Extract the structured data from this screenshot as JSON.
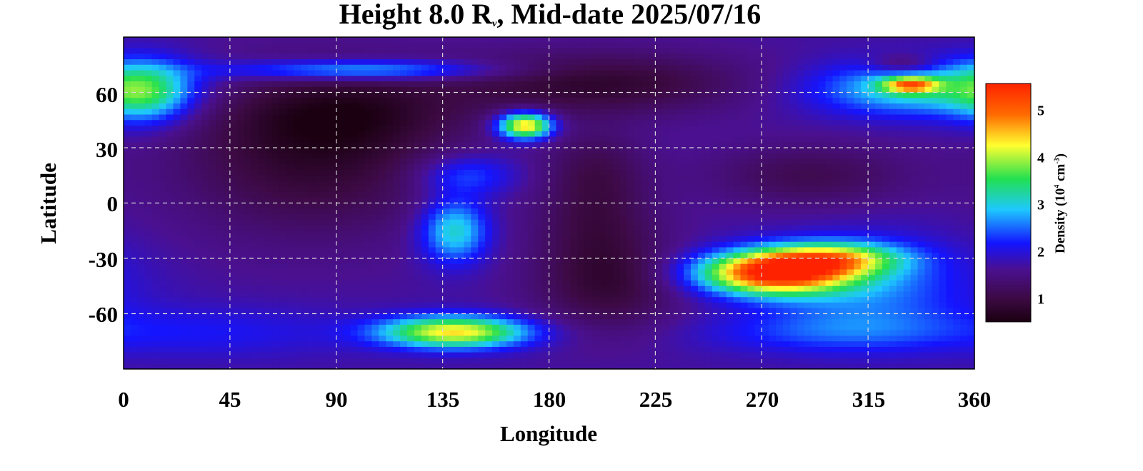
{
  "title": {
    "prefix": "Height 8.0 R",
    "subscript": "v",
    "suffix": ", Mid-date 2025/07/16"
  },
  "chart_data": {
    "type": "heatmap",
    "xlabel": "Longitude",
    "ylabel": "Latitude",
    "xlim": [
      0,
      360
    ],
    "ylim": [
      -90,
      90
    ],
    "x_ticks": [
      "0",
      "45",
      "90",
      "135",
      "180",
      "225",
      "270",
      "315",
      "360"
    ],
    "y_ticks": [
      "60",
      "30",
      "0",
      "-30",
      "-60"
    ],
    "grid": true,
    "colorbar": {
      "label_prefix": "Density (10",
      "label_exp": "4",
      "label_mid": " cm",
      "label_exp2": "-3",
      "label_suffix": ")",
      "ticks": [
        "1",
        "2",
        "3",
        "4",
        "5"
      ],
      "range": [
        0.5,
        5.6
      ],
      "colors": [
        "#1a0010",
        "#3d0a45",
        "#4a1090",
        "#1414ff",
        "#1ec8ff",
        "#22e050",
        "#ffff30",
        "#ff6a00",
        "#ff2200"
      ]
    },
    "background_density": 1.7,
    "features": [
      {
        "lon": 80,
        "lat": 25,
        "dlon": 40,
        "dlat": 30,
        "value": -0.9
      },
      {
        "lon": 95,
        "lat": 50,
        "dlon": 35,
        "dlat": 15,
        "value": -0.6
      },
      {
        "lon": 200,
        "lat": 65,
        "dlon": 45,
        "dlat": 12,
        "value": -0.9
      },
      {
        "lon": 205,
        "lat": -45,
        "dlon": 22,
        "dlat": 18,
        "value": -0.8
      },
      {
        "lon": 200,
        "lat": -10,
        "dlon": 18,
        "dlat": 18,
        "value": -0.6
      },
      {
        "lon": 200,
        "lat": 20,
        "dlon": 15,
        "dlat": 15,
        "value": -0.5
      },
      {
        "lon": 290,
        "lat": 15,
        "dlon": 30,
        "dlat": 12,
        "value": -0.6
      },
      {
        "lon": 330,
        "lat": 75,
        "dlon": 10,
        "dlat": 4,
        "value": -0.7
      },
      {
        "lon": 275,
        "lat": -38,
        "dlon": 22,
        "dlat": 8,
        "value": 3.8
      },
      {
        "lon": 300,
        "lat": -30,
        "dlon": 20,
        "dlat": 6,
        "value": 2.0
      },
      {
        "lon": 315,
        "lat": -45,
        "dlon": 30,
        "dlat": 18,
        "value": 0.9
      },
      {
        "lon": 300,
        "lat": -70,
        "dlon": 40,
        "dlat": 8,
        "value": 0.6
      },
      {
        "lon": 140,
        "lat": -15,
        "dlon": 10,
        "dlat": 12,
        "value": 1.5
      },
      {
        "lon": 140,
        "lat": -70,
        "dlon": 22,
        "dlat": 6,
        "value": 2.7
      },
      {
        "lon": 170,
        "lat": 42,
        "dlon": 8,
        "dlat": 5,
        "value": 3.0
      },
      {
        "lon": 100,
        "lat": 72,
        "dlon": 40,
        "dlat": 4,
        "value": 1.4
      },
      {
        "lon": 10,
        "lat": 60,
        "dlon": 14,
        "dlat": 12,
        "value": 1.5
      },
      {
        "lon": 335,
        "lat": 62,
        "dlon": 30,
        "dlat": 10,
        "value": 1.5
      },
      {
        "lon": 333,
        "lat": 64,
        "dlon": 8,
        "dlat": 3,
        "value": 2.2
      },
      {
        "lon": 145,
        "lat": 15,
        "dlon": 15,
        "dlat": 8,
        "value": 0.8
      },
      {
        "lon": 40,
        "lat": -70,
        "dlon": 40,
        "dlat": 10,
        "value": 0.4
      }
    ]
  }
}
